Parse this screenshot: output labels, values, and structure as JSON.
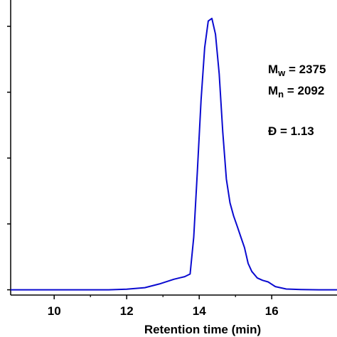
{
  "chart_data": {
    "type": "line",
    "title": "",
    "xlabel": "Retention time (min)",
    "ylabel": "",
    "xlim": [
      8.8,
      17.8
    ],
    "ylim": [
      -0.02,
      1.1
    ],
    "x_ticks": [
      10,
      12,
      14,
      16
    ],
    "x_tick_labels": [
      "10",
      "12",
      "14",
      "16"
    ],
    "y_ticks": [
      0,
      0.25,
      0.5,
      0.75,
      1.0
    ],
    "grid": false,
    "legend": "none",
    "line_color": "#0a0ad0",
    "series": [
      {
        "x": [
          8.8,
          9.5,
          10.0,
          10.5,
          11.0,
          11.5,
          12.0,
          12.5,
          12.9,
          13.3,
          13.6,
          13.75,
          13.85,
          13.95,
          14.05,
          14.15,
          14.25,
          14.35,
          14.45,
          14.55,
          14.65,
          14.75,
          14.85,
          14.95,
          15.05,
          15.15,
          15.25,
          15.35,
          15.45,
          15.6,
          15.75,
          15.9,
          16.1,
          16.4,
          16.8,
          17.3,
          17.8
        ],
        "y": [
          0.0,
          0.0,
          0.0,
          0.0,
          0.0,
          0.0,
          0.002,
          0.008,
          0.022,
          0.04,
          0.05,
          0.06,
          0.2,
          0.45,
          0.72,
          0.92,
          1.02,
          1.03,
          0.97,
          0.82,
          0.6,
          0.42,
          0.33,
          0.28,
          0.24,
          0.2,
          0.16,
          0.1,
          0.07,
          0.045,
          0.036,
          0.03,
          0.012,
          0.003,
          0.001,
          0.0,
          0.0
        ]
      }
    ],
    "annotations": {
      "mw": {
        "main": "M",
        "sub": "w",
        "value": " = 2375"
      },
      "mn": {
        "main": "M",
        "sub": "n",
        "value": " = 2092"
      },
      "dispersity": "Đ = 1.13"
    }
  }
}
